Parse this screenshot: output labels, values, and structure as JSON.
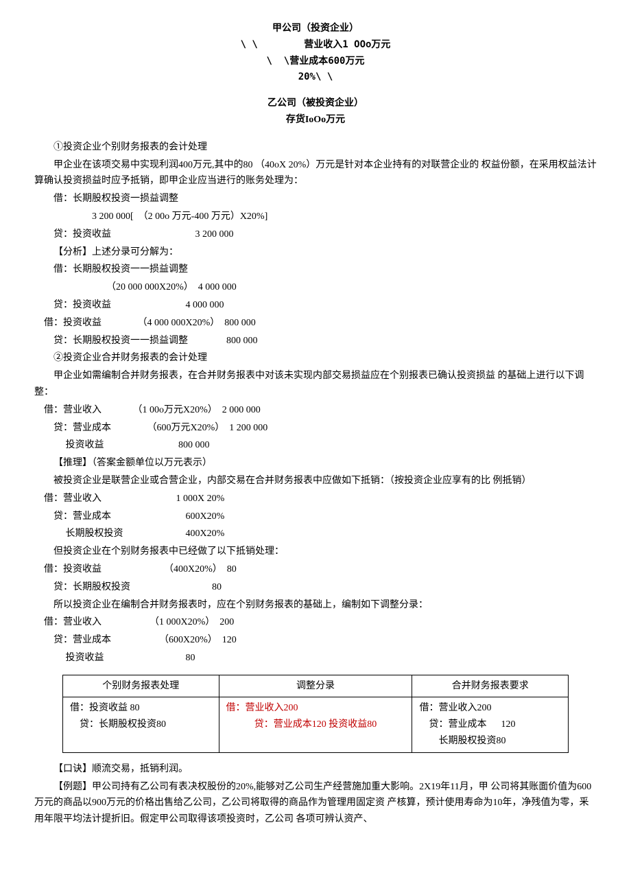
{
  "diagram": {
    "line1": "甲公司（投资企业）",
    "line2": "\\ \\        营业收入1 OOo万元",
    "line3": "\\  \\营业成本600万元",
    "line4": "20%\\ \\",
    "line5": "乙公司（被投资企业）",
    "line6": "存货IoOo万元"
  },
  "s1": {
    "h": "①投资企业个别财务报表的会计处理",
    "p1": "甲企业在该项交易中实现利润400万元,其中的80 （40oX 20%）万元是针对本企业持有的对联营企业的 权益份额，在采用权益法计算确认投资损益时应予抵销，即甲企业应当进行的账务处理为：",
    "e1": "借：长期股权投资一损益调整",
    "e2": "                        3 200 000[  （2 00o 万元-400 万元）X20%]",
    "e3": "        贷：投资收益                                   3 200 000",
    "a_h": "【分析】上述分录可分解为：",
    "a1": "借：长期股权投资一一损益调整",
    "a2": "                              （20 000 000X20%）  4 000 000",
    "a3": "        贷：投资收益                               4 000 000",
    "a4": "    借：投资收益               （4 000 000X20%）  800 000",
    "a5": "        贷：长期股权投资一一损益调整                800 000"
  },
  "s2": {
    "h": "②投资企业合并财务报表的会计处理",
    "p1": "甲企业如需编制合并财务报表，在合并财务报表中对该未实现内部交易损益应在个别报表已确认投资损益  的基础上进行以下调整：",
    "e1": "    借：营业收入             （1 00o万元X20%）  2 000 000",
    "e2": "        贷：营业成本               （600万元X20%）  1 200 000",
    "e3": "             投资收益                               800 000"
  },
  "s3": {
    "h": "【推理】（答案金额单位以万元表示）",
    "p1": "被投资企业是联营企业或合营企业，内部交易在合并财务报表中应做如下抵销：（按投资企业应享有的比  例抵销）",
    "e1": "    借：营业收入                               1 000X 20%",
    "e2": "        贷：营业成本                               600X20%",
    "e3": "             长期股权投资                          400X20%",
    "p2": "但投资企业在个别财务报表中已经做了以下抵销处理：",
    "e4": "    借：投资收益                          （400X20%）  80",
    "e5": "        贷：长期股权投资                                  80",
    "p3": "所以投资企业在编制合并财务报表时，应在个别财务报表的基础上，编制如下调整分录：",
    "e6": "    借：营业收入                    （1 000X20%）  200",
    "e7": "        贷：营业成本                    （600X20%）  120",
    "e8": "             投资收益                                  80"
  },
  "table": {
    "h1": "个别财务报表处理",
    "h2": "调整分录",
    "h3": "合并财务报表要求",
    "c1a": "借：投资收益 80",
    "c1b": "    贷：长期股权投资80",
    "c2a": "借：营业收入200",
    "c2b": "贷：营业成本120 投资收益80",
    "c3a": "借：营业收入200",
    "c3b": "    贷：营业成本      120",
    "c3c": "        长期股权投资80"
  },
  "footer": {
    "tip": "【口诀】顺流交易，抵销利润。",
    "ex": "【例题】甲公司持有乙公司有表决权股份的20%,能够对乙公司生产经营施加重大影响。2X19年11月，甲 公司将其账面价值为600万元的商品以900万元的价格出售给乙公司，乙公司将取得的商品作为管理用固定资 产核算，预计使用寿命为10年，净残值为零，釆用年限平均法计提折旧。假定甲公司取得该项投资时，乙公司 各项可辨认资产、"
  }
}
